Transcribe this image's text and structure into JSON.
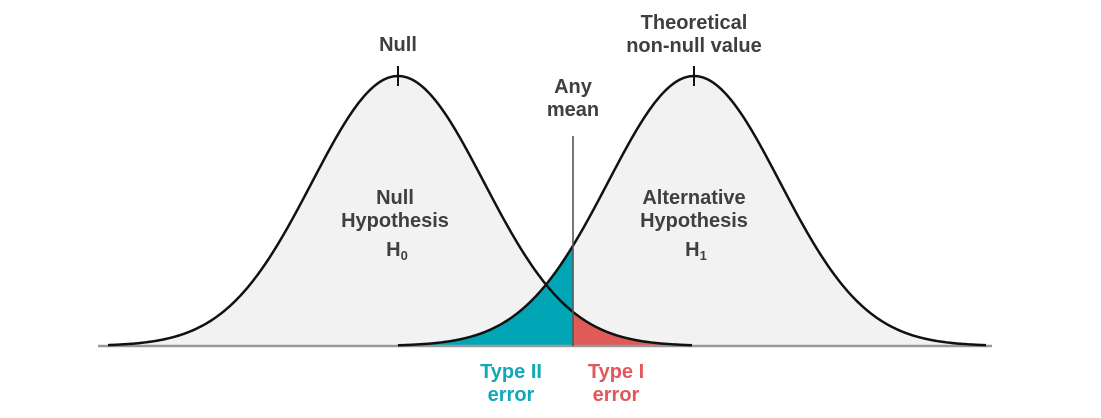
{
  "labels": {
    "null_marker": "Null",
    "theoretical_line1": "Theoretical",
    "theoretical_line2": "non-null value",
    "any_mean_line1": "Any",
    "any_mean_line2": "mean",
    "null_hyp_line1": "Null",
    "null_hyp_line2": "Hypothesis",
    "null_hyp_symbol": "H",
    "null_hyp_subscript": "0",
    "alt_hyp_line1": "Alternative",
    "alt_hyp_line2": "Hypothesis",
    "alt_hyp_symbol": "H",
    "alt_hyp_subscript": "1",
    "type2_line1": "Type II",
    "type2_line2": "error",
    "type1_line1": "Type I",
    "type1_line2": "error"
  },
  "colors": {
    "curve_stroke": "#111111",
    "curve_fill": "#f2f2f2",
    "type2_fill": "#00a6b5",
    "type1_fill": "#e05a58",
    "text_dark": "#3f3f3f",
    "text_teal": "#12a8b8",
    "text_red": "#e2575a",
    "axis": "#999999"
  }
}
